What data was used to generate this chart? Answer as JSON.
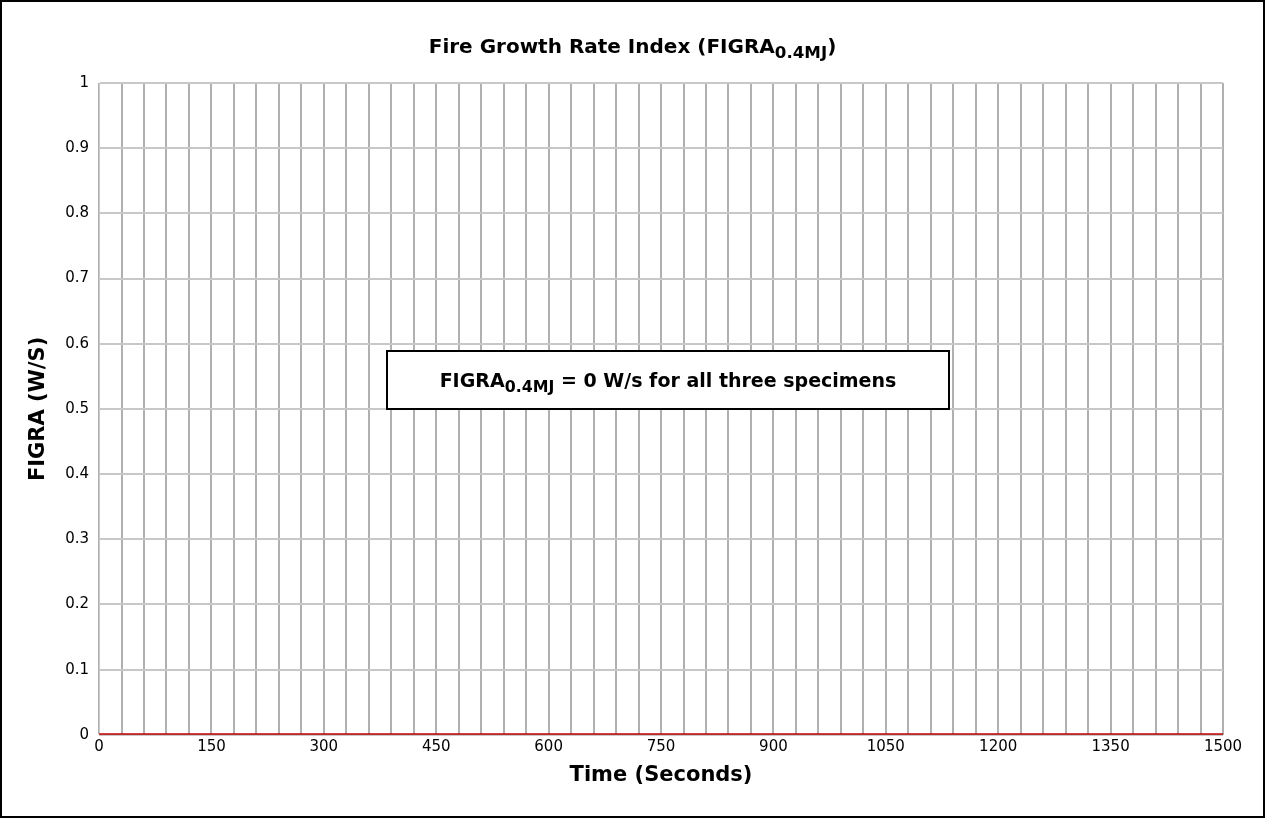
{
  "chart_data": {
    "type": "line",
    "title": "Fire Growth Rate Index (FIGRA$_{0.4MJ}$)",
    "xlabel": "Time (Seconds)",
    "ylabel": "FIGRA (W/S)",
    "annotations": [
      "FIGRA$_{0.4MJ}$ = 0 W/s for all three specimens"
    ],
    "x": [
      0,
      1500
    ],
    "series": [
      {
        "color": "#c00000",
        "values": [
          0,
          0
        ]
      }
    ],
    "xlim": [
      0,
      1500
    ],
    "xticks": [
      0,
      {
        "value": 30,
        "label": null
      },
      {
        "value": 60,
        "label": null
      },
      {
        "value": 90,
        "label": null
      },
      {
        "value": 120,
        "label": null
      },
      150,
      {
        "value": 180,
        "label": null
      },
      {
        "value": 210,
        "label": null
      },
      {
        "value": 240,
        "label": null
      },
      {
        "value": 270,
        "label": null
      },
      300,
      {
        "value": 330,
        "label": null
      },
      {
        "value": 360,
        "label": null
      },
      {
        "value": 390,
        "label": null
      },
      {
        "value": 420,
        "label": null
      },
      450,
      {
        "value": 480,
        "label": null
      },
      {
        "value": 510,
        "label": null
      },
      {
        "value": 540,
        "label": null
      },
      {
        "value": 570,
        "label": null
      },
      600,
      {
        "value": 630,
        "label": null
      },
      {
        "value": 660,
        "label": null
      },
      {
        "value": 690,
        "label": null
      },
      {
        "value": 720,
        "label": null
      },
      750,
      {
        "value": 780,
        "label": null
      },
      {
        "value": 810,
        "label": null
      },
      {
        "value": 840,
        "label": null
      },
      {
        "value": 870,
        "label": null
      },
      900,
      {
        "value": 930,
        "label": null
      },
      {
        "value": 960,
        "label": null
      },
      {
        "value": 990,
        "label": null
      },
      {
        "value": 1020,
        "label": null
      },
      1050,
      {
        "value": 1080,
        "label": null
      },
      {
        "value": 1110,
        "label": null
      },
      {
        "value": 1140,
        "label": null
      },
      {
        "value": 1170,
        "label": null
      },
      1200,
      {
        "value": 1230,
        "label": null
      },
      {
        "value": 1260,
        "label": null
      },
      {
        "value": 1290,
        "label": null
      },
      {
        "value": 1320,
        "label": null
      },
      1350,
      {
        "value": 1380,
        "label": null
      },
      {
        "value": 1410,
        "label": null
      },
      {
        "value": 1440,
        "label": null
      },
      {
        "value": 1470,
        "label": null
      },
      1500
    ],
    "ylim": [
      0,
      1
    ],
    "yticks": [
      0,
      0.1,
      0.2,
      0.3,
      0.4,
      0.5,
      0.6,
      0.7,
      0.8,
      0.9,
      1
    ],
    "grid": true,
    "legend": false,
    "marker": "none",
    "line_style": "solid"
  }
}
